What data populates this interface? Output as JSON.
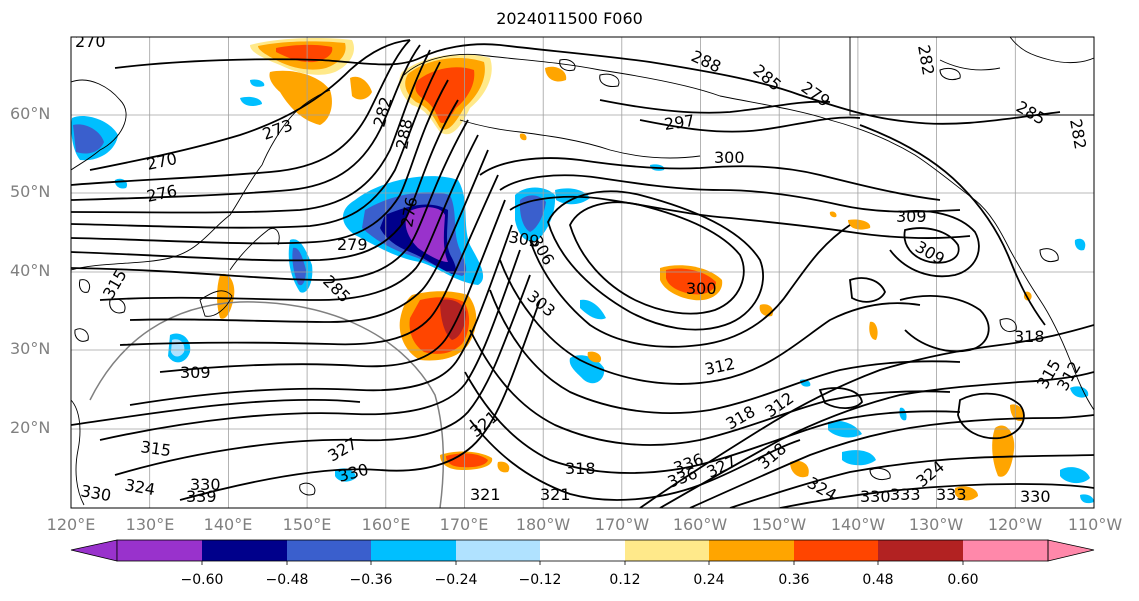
{
  "title": "2024011500 F060",
  "lat_labels": [
    "60°N",
    "50°N",
    "40°N",
    "30°N",
    "20°N"
  ],
  "lon_labels": [
    "120°E",
    "130°E",
    "140°E",
    "150°E",
    "160°E",
    "170°E",
    "180°W",
    "170°W",
    "160°W",
    "150°W",
    "140°W",
    "130°W",
    "120°W",
    "110°W"
  ],
  "colorbar": {
    "ticks": [
      "−0.60",
      "−0.48",
      "−0.36",
      "−0.24",
      "−0.12",
      "0.12",
      "0.24",
      "0.36",
      "0.48",
      "0.60"
    ],
    "colors": [
      "#9932cc",
      "#00008b",
      "#3a5fcd",
      "#00bfff",
      "#b0e2ff",
      "#ffffff",
      "#ffe98a",
      "#ffa500",
      "#ff4500",
      "#b22222",
      "#ff88aa"
    ]
  },
  "contour_labels": [
    "270",
    "276",
    "273",
    "279",
    "282",
    "285",
    "288",
    "291",
    "297",
    "300",
    "303",
    "306",
    "309",
    "312",
    "315",
    "318",
    "321",
    "324",
    "327",
    "330",
    "333",
    "336",
    "339"
  ],
  "placed_labels": [
    {
      "text": "270"
    },
    {
      "text": "273"
    },
    {
      "text": "270"
    },
    {
      "text": "276"
    },
    {
      "text": "279"
    },
    {
      "text": "285"
    },
    {
      "text": "282"
    },
    {
      "text": "288"
    },
    {
      "text": "276"
    },
    {
      "text": "288"
    },
    {
      "text": "285"
    },
    {
      "text": "279"
    },
    {
      "text": "297"
    },
    {
      "text": "300"
    },
    {
      "text": "282"
    },
    {
      "text": "285"
    },
    {
      "text": "282"
    },
    {
      "text": "309"
    },
    {
      "text": "306"
    },
    {
      "text": "303"
    },
    {
      "text": "300"
    },
    {
      "text": "309"
    },
    {
      "text": "309"
    },
    {
      "text": "318"
    },
    {
      "text": "312"
    },
    {
      "text": "318"
    },
    {
      "text": "315"
    },
    {
      "text": "309"
    },
    {
      "text": "321"
    },
    {
      "text": "330"
    },
    {
      "text": "318"
    },
    {
      "text": "321"
    },
    {
      "text": "327"
    },
    {
      "text": "318"
    },
    {
      "text": "324"
    },
    {
      "text": "315"
    },
    {
      "text": "324"
    },
    {
      "text": "330"
    },
    {
      "text": "339"
    },
    {
      "text": "321"
    },
    {
      "text": "330"
    },
    {
      "text": "333"
    },
    {
      "text": "336"
    },
    {
      "text": "327"
    },
    {
      "text": "324"
    },
    {
      "text": "330"
    },
    {
      "text": "333"
    },
    {
      "text": "336"
    },
    {
      "text": "330"
    },
    {
      "text": "315"
    },
    {
      "text": "312"
    },
    {
      "text": "312"
    }
  ]
}
